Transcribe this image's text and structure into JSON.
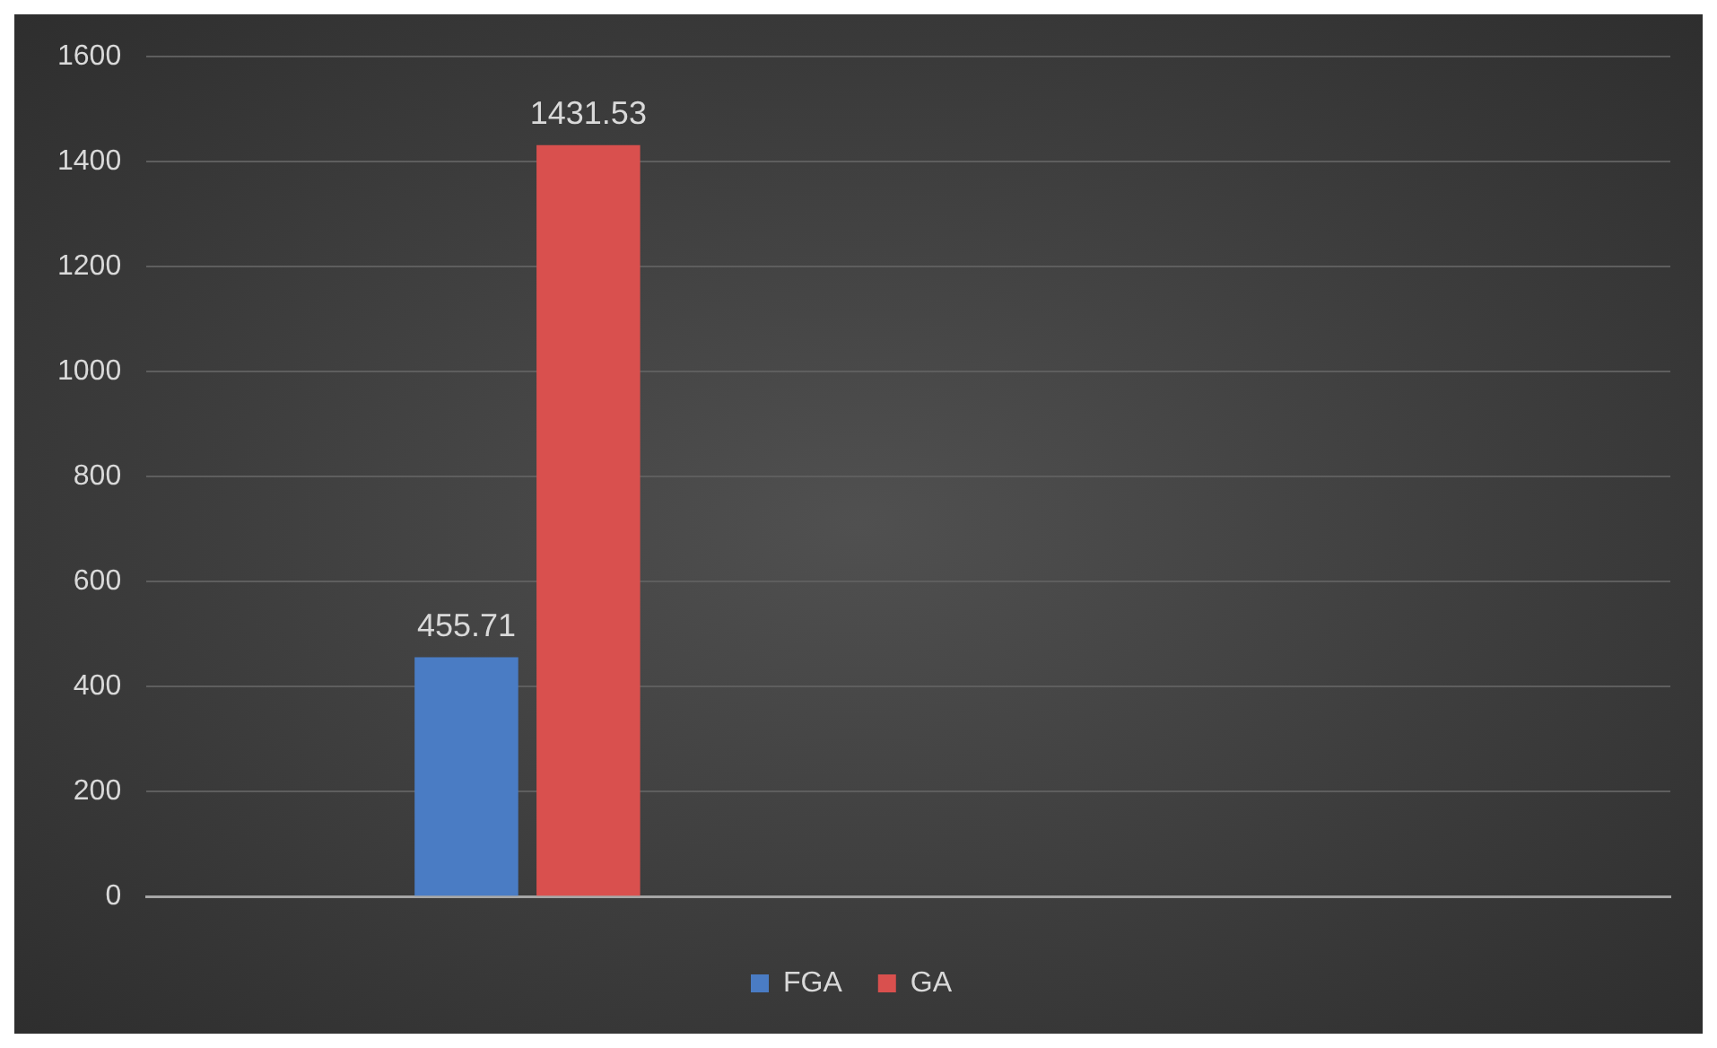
{
  "chart_data": {
    "type": "bar",
    "categories": [
      null,
      null
    ],
    "series": [
      {
        "name": "FGA",
        "color": "#4a7cc4",
        "values": [
          455.71,
          null
        ]
      },
      {
        "name": "GA",
        "color": "#d9504e",
        "values": [
          1431.53,
          null
        ]
      }
    ],
    "ylim": [
      0,
      1600
    ],
    "yticks": [
      0,
      200,
      400,
      600,
      800,
      1000,
      1200,
      1400,
      1600
    ],
    "grid": "y",
    "legend": "bottom",
    "data_labels": true
  }
}
